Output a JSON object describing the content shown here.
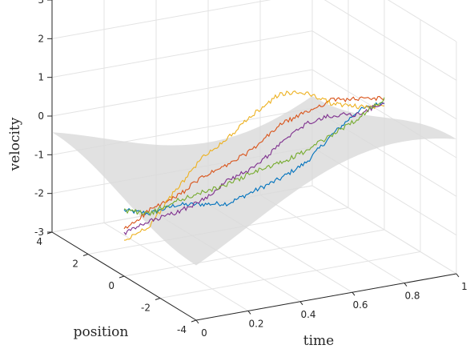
{
  "chart_data": {
    "type": "line",
    "subtype": "3d-surface-with-trajectories",
    "title": "",
    "axes": {
      "x": {
        "label": "time",
        "range": [
          0,
          1
        ],
        "ticks": [
          "0",
          "0.2",
          "0.4",
          "0.6",
          "0.8",
          "1"
        ]
      },
      "y": {
        "label": "position",
        "range": [
          -4,
          4
        ],
        "ticks": [
          "-4",
          "-2",
          "0",
          "2",
          "4"
        ]
      },
      "z": {
        "label": "velocity",
        "range": [
          -3,
          3
        ],
        "ticks": [
          "-3",
          "-2",
          "-1",
          "0",
          "1",
          "2",
          "3"
        ]
      }
    },
    "grid": true,
    "legend": "none",
    "surface": {
      "color": "#d9d9d9",
      "description_shape": "saddle surface"
    },
    "series": [
      {
        "color": "#0072BD",
        "t": [
          0,
          0.1,
          0.2,
          0.3,
          0.4,
          0.5,
          0.6,
          0.7,
          0.8,
          0.9,
          1.0
        ],
        "v": [
          -1.3,
          -1.5,
          -1.4,
          -1.5,
          -1.6,
          -1.4,
          -1.2,
          -0.9,
          -0.3,
          0.2,
          0.3
        ]
      },
      {
        "color": "#D95319",
        "t": [
          0,
          0.1,
          0.2,
          0.3,
          0.4,
          0.5,
          0.6,
          0.7,
          0.8,
          0.9,
          1.0
        ],
        "v": [
          -1.8,
          -1.4,
          -1.2,
          -0.8,
          -0.6,
          -0.3,
          0.2,
          0.4,
          0.6,
          0.5,
          0.4
        ]
      },
      {
        "color": "#EDB120",
        "t": [
          0,
          0.1,
          0.2,
          0.3,
          0.4,
          0.5,
          0.6,
          0.7,
          0.8,
          0.9,
          1.0
        ],
        "v": [
          -2.1,
          -1.8,
          -1.0,
          -0.3,
          0.1,
          0.6,
          1.0,
          0.9,
          0.5,
          0.3,
          0.2
        ]
      },
      {
        "color": "#7E2F8E",
        "t": [
          0,
          0.1,
          0.2,
          0.3,
          0.4,
          0.5,
          0.6,
          0.7,
          0.8,
          0.9,
          1.0
        ],
        "v": [
          -1.9,
          -1.7,
          -1.6,
          -1.4,
          -1.0,
          -0.8,
          -0.3,
          0.1,
          0.2,
          0.1,
          0.3
        ]
      },
      {
        "color": "#77AC30",
        "t": [
          0,
          0.1,
          0.2,
          0.3,
          0.4,
          0.5,
          0.6,
          0.7,
          0.8,
          0.9,
          1.0
        ],
        "v": [
          -1.3,
          -1.5,
          -1.3,
          -1.2,
          -1.1,
          -0.9,
          -0.8,
          -0.6,
          -0.3,
          0.0,
          0.4
        ]
      }
    ]
  }
}
